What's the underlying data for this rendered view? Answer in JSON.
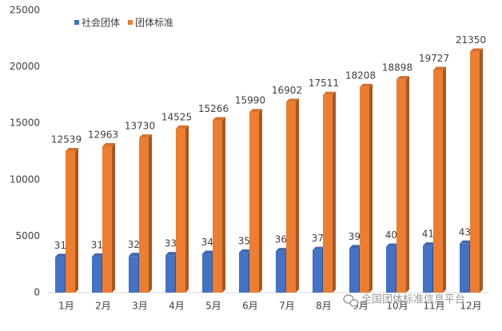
{
  "chart_data": {
    "type": "bar",
    "categories": [
      "1月",
      "2月",
      "3月",
      "4月",
      "5月",
      "6月",
      "7月",
      "8月",
      "9月",
      "10月",
      "11月",
      "12月"
    ],
    "series": [
      {
        "name": "社会团体",
        "color": "#4472c4",
        "values": [
          3156,
          3194,
          3240,
          3320,
          3433,
          3554,
          3678,
          3777,
          3938,
          4068,
          4171,
          4334
        ]
      },
      {
        "name": "团体标准",
        "color": "#ed7d31",
        "values": [
          12539,
          12963,
          13730,
          14525,
          15266,
          15990,
          16902,
          17511,
          18208,
          18898,
          19727,
          21350
        ]
      }
    ],
    "ylim": [
      0,
      25000
    ],
    "yticks": [
      0,
      5000,
      10000,
      15000,
      20000,
      25000
    ],
    "grid": false,
    "legend": "top-left",
    "watermark": "全国团体标准信息平台"
  }
}
